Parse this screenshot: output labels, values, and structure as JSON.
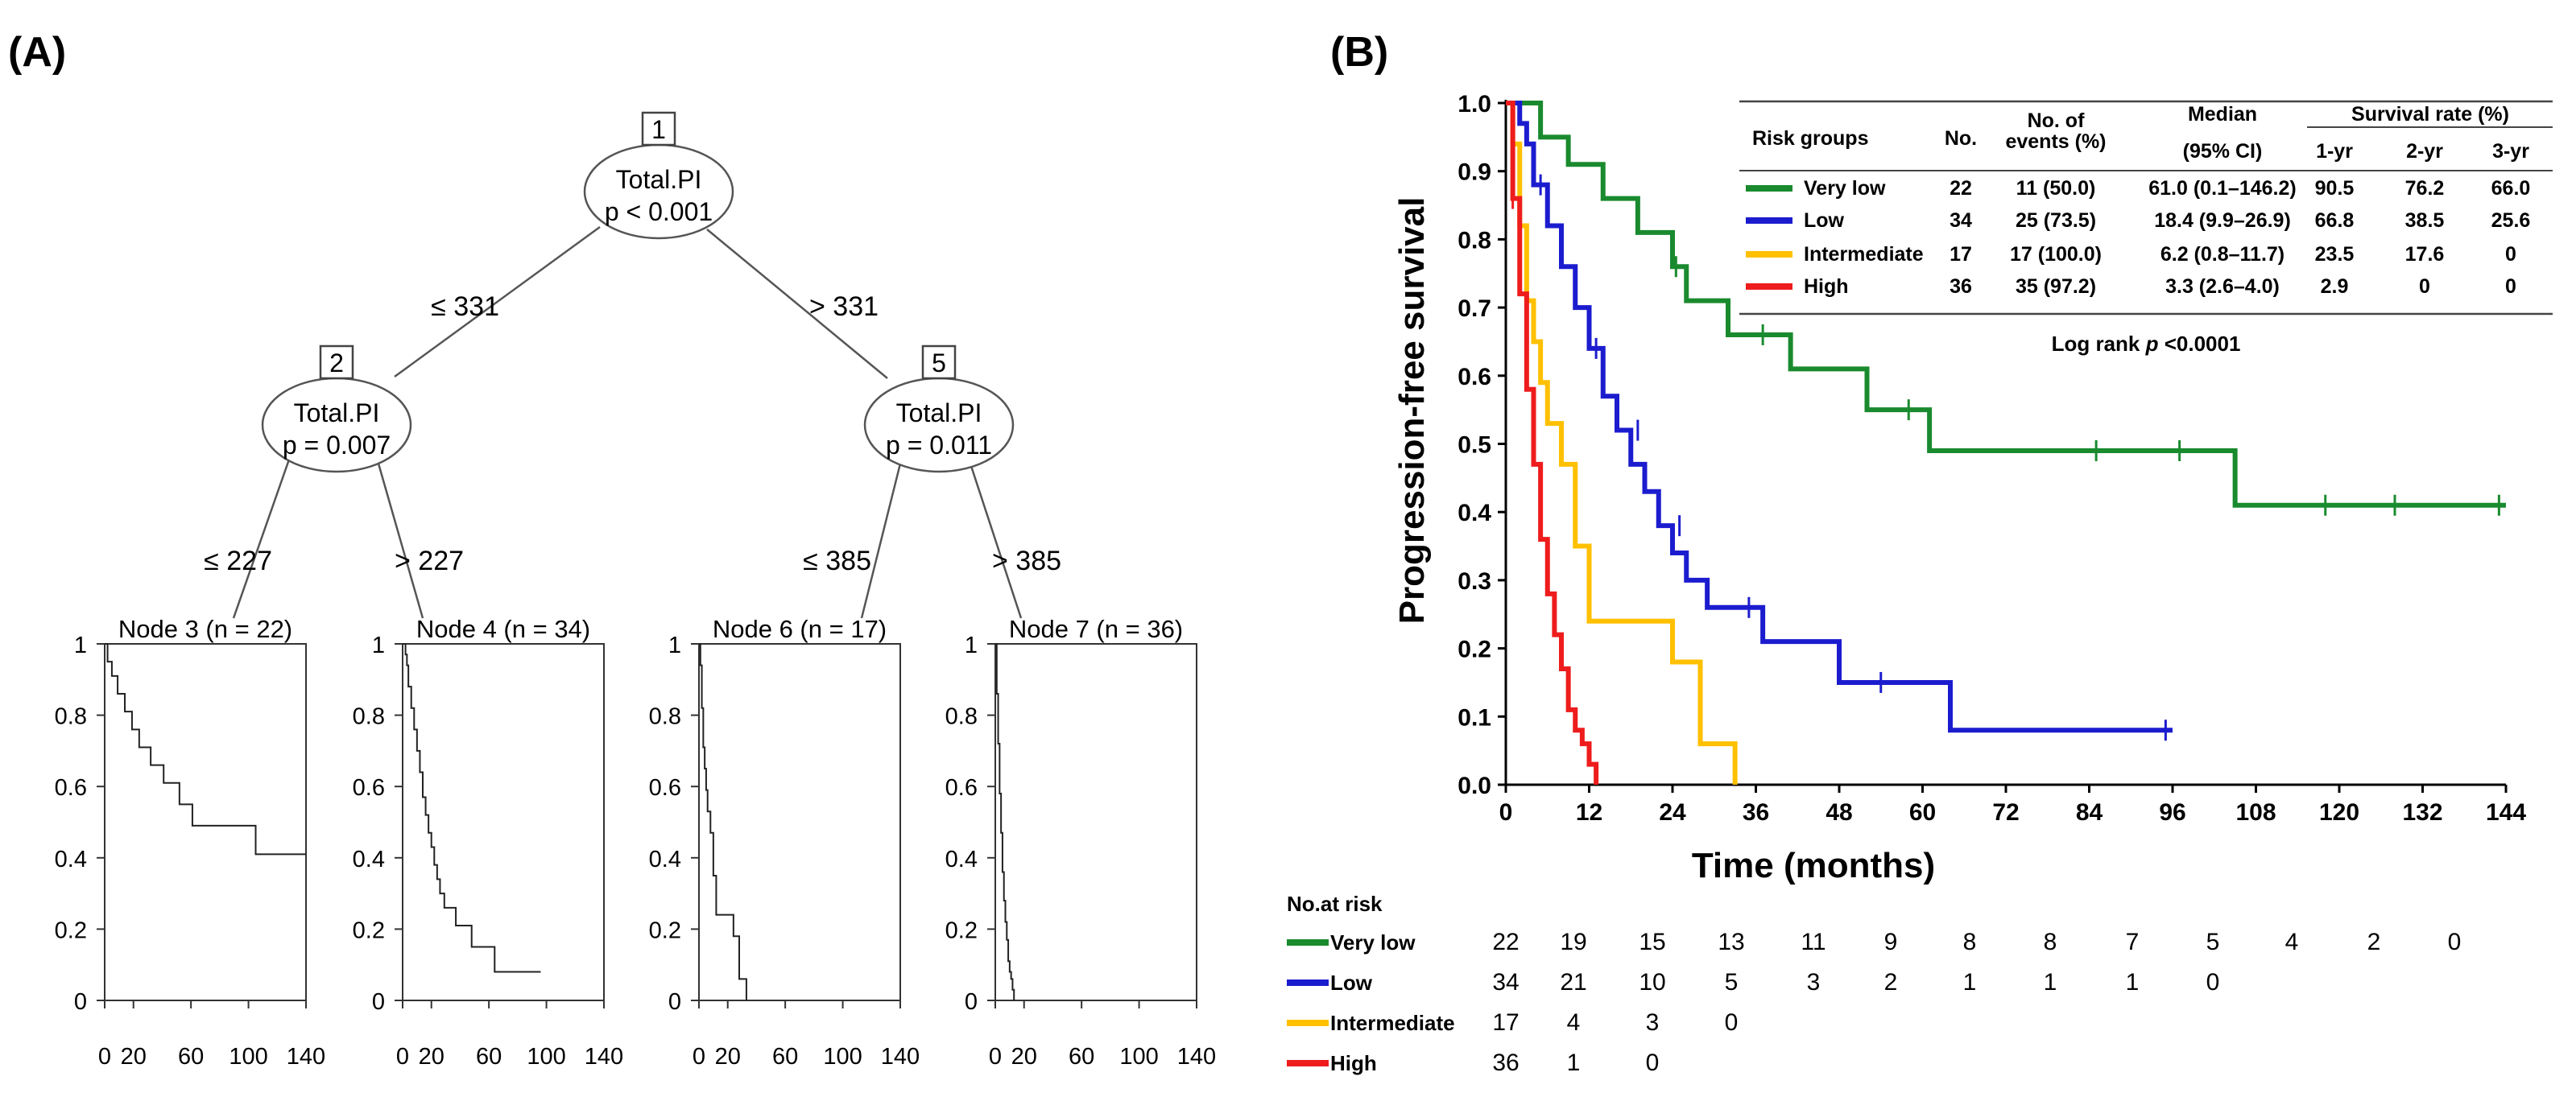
{
  "panel_a": {
    "label": "(A)",
    "nodes": [
      {
        "id": "1",
        "variable": "Total.PI",
        "p": "p < 0.001"
      },
      {
        "id": "2",
        "variable": "Total.PI",
        "p": "p = 0.007"
      },
      {
        "id": "5",
        "variable": "Total.PI",
        "p": "p = 0.011"
      }
    ],
    "edges": [
      {
        "from": "1",
        "to": "2",
        "label": "≤ 331"
      },
      {
        "from": "1",
        "to": "5",
        "label": "> 331"
      },
      {
        "from": "2",
        "to": "3",
        "label": "≤ 227"
      },
      {
        "from": "2",
        "to": "4",
        "label": "> 227"
      },
      {
        "from": "5",
        "to": "6",
        "label": "≤ 385"
      },
      {
        "from": "5",
        "to": "7",
        "label": "> 385"
      }
    ],
    "y_ticks": [
      "0",
      "0.2",
      "0.4",
      "0.6",
      "0.8",
      "1"
    ],
    "x_ticks": [
      "0",
      "20",
      "60",
      "100",
      "140"
    ]
  },
  "chart_data": [
    {
      "type": "line",
      "step": true,
      "panel": "A-node3",
      "title": "Node 3 (n = 22)",
      "xlim": [
        0,
        140
      ],
      "ylim": [
        0,
        1
      ],
      "x": [
        0,
        2,
        5,
        9,
        14,
        19,
        24,
        32,
        41,
        52,
        61,
        105,
        140
      ],
      "y": [
        1,
        0.95,
        0.91,
        0.86,
        0.81,
        0.76,
        0.71,
        0.66,
        0.61,
        0.55,
        0.49,
        0.41,
        0.41
      ]
    },
    {
      "type": "line",
      "step": true,
      "panel": "A-node4",
      "title": "Node 4 (n = 34)",
      "xlim": [
        0,
        140
      ],
      "ylim": [
        0,
        1
      ],
      "x": [
        0,
        2,
        3,
        4,
        6,
        8,
        10,
        12,
        14,
        16,
        18,
        20,
        22,
        24,
        26,
        29,
        37,
        48,
        64,
        96
      ],
      "y": [
        1,
        0.97,
        0.94,
        0.88,
        0.82,
        0.76,
        0.7,
        0.64,
        0.57,
        0.52,
        0.47,
        0.43,
        0.38,
        0.34,
        0.3,
        0.26,
        0.21,
        0.15,
        0.08,
        0.08
      ]
    },
    {
      "type": "line",
      "step": true,
      "panel": "A-node6",
      "title": "Node 6 (n = 17)",
      "xlim": [
        0,
        140
      ],
      "ylim": [
        0,
        1
      ],
      "x": [
        0,
        1,
        2,
        3,
        4,
        5,
        6,
        8,
        10,
        12,
        24,
        28,
        33
      ],
      "y": [
        1,
        0.94,
        0.82,
        0.71,
        0.65,
        0.59,
        0.53,
        0.47,
        0.35,
        0.24,
        0.18,
        0.06,
        0
      ]
    },
    {
      "type": "line",
      "step": true,
      "panel": "A-node7",
      "title": "Node 7 (n = 36)",
      "xlim": [
        0,
        140
      ],
      "ylim": [
        0,
        1
      ],
      "x": [
        0,
        1,
        2,
        3,
        4,
        5,
        6,
        7,
        8,
        9,
        10,
        11,
        12,
        13
      ],
      "y": [
        1,
        0.86,
        0.72,
        0.58,
        0.47,
        0.36,
        0.28,
        0.22,
        0.17,
        0.11,
        0.08,
        0.06,
        0.03,
        0
      ]
    },
    {
      "type": "line",
      "step": true,
      "panel": "B",
      "label": "(B)",
      "xlabel": "Time (months)",
      "ylabel": "Progression-free survival",
      "xlim": [
        0,
        144
      ],
      "ylim": [
        0,
        1
      ],
      "x_ticks": [
        "0",
        "12",
        "24",
        "36",
        "48",
        "60",
        "72",
        "84",
        "96",
        "108",
        "120",
        "132",
        "144"
      ],
      "y_ticks": [
        "0.0",
        "0.1",
        "0.2",
        "0.3",
        "0.4",
        "0.5",
        "0.6",
        "0.7",
        "0.8",
        "0.9",
        "1.0"
      ],
      "series": [
        {
          "name": "Very low",
          "color": "#1a8a2e",
          "x": [
            0,
            5,
            9,
            14,
            19,
            24,
            26,
            32,
            41,
            52,
            61,
            105,
            144
          ],
          "y": [
            1,
            0.95,
            0.91,
            0.86,
            0.81,
            0.76,
            0.71,
            0.66,
            0.61,
            0.55,
            0.49,
            0.41,
            0.41
          ],
          "censor": [
            {
              "x": 24.5,
              "y": 0.76
            },
            {
              "x": 37,
              "y": 0.66
            },
            {
              "x": 58,
              "y": 0.55
            },
            {
              "x": 85,
              "y": 0.49
            },
            {
              "x": 97,
              "y": 0.49
            },
            {
              "x": 118,
              "y": 0.41
            },
            {
              "x": 128,
              "y": 0.41
            },
            {
              "x": 143,
              "y": 0.41
            }
          ]
        },
        {
          "name": "Low",
          "color": "#1c1ccf",
          "x": [
            0,
            2,
            3,
            4,
            6,
            8,
            10,
            12,
            14,
            16,
            18,
            20,
            22,
            24,
            26,
            29,
            37,
            48,
            64,
            96
          ],
          "y": [
            1,
            0.97,
            0.94,
            0.88,
            0.82,
            0.76,
            0.7,
            0.64,
            0.57,
            0.52,
            0.47,
            0.43,
            0.38,
            0.34,
            0.3,
            0.26,
            0.21,
            0.15,
            0.08,
            0.08
          ],
          "censor": [
            {
              "x": 5,
              "y": 0.88
            },
            {
              "x": 13,
              "y": 0.64
            },
            {
              "x": 19,
              "y": 0.52
            },
            {
              "x": 25,
              "y": 0.38
            },
            {
              "x": 35,
              "y": 0.26
            },
            {
              "x": 54,
              "y": 0.15
            },
            {
              "x": 95,
              "y": 0.08
            }
          ]
        },
        {
          "name": "Intermediate",
          "color": "#ffc000",
          "x": [
            0,
            1,
            2,
            3,
            4,
            5,
            6,
            8,
            10,
            12,
            24,
            28,
            33
          ],
          "y": [
            1,
            0.94,
            0.82,
            0.71,
            0.65,
            0.59,
            0.53,
            0.47,
            0.35,
            0.24,
            0.18,
            0.06,
            0
          ],
          "censor": []
        },
        {
          "name": "High",
          "color": "#ee1c1c",
          "x": [
            0,
            1,
            2,
            3,
            4,
            5,
            6,
            7,
            8,
            9,
            10,
            11,
            12,
            13
          ],
          "y": [
            1,
            0.86,
            0.72,
            0.58,
            0.47,
            0.36,
            0.28,
            0.22,
            0.17,
            0.11,
            0.08,
            0.06,
            0.03,
            0
          ],
          "censor": [
            {
              "x": 1,
              "y": 0.86
            }
          ]
        }
      ]
    }
  ],
  "summary_table": {
    "headers": {
      "risk_groups": "Risk groups",
      "no": "No.",
      "events_1": "No. of",
      "events_2": "events (%)",
      "median_1": "Median",
      "median_2": "(95% CI)",
      "survival": "Survival rate (%)",
      "yr1": "1-yr",
      "yr2": "2-yr",
      "yr3": "3-yr"
    },
    "rows": [
      {
        "group": "Very low",
        "color": "#1a8a2e",
        "no": "22",
        "events": "11 (50.0)",
        "median": "61.0 (0.1–146.2)",
        "yr1": "90.5",
        "yr2": "76.2",
        "yr3": "66.0"
      },
      {
        "group": "Low",
        "color": "#1c1ccf",
        "no": "34",
        "events": "25 (73.5)",
        "median": "18.4 (9.9–26.9)",
        "yr1": "66.8",
        "yr2": "38.5",
        "yr3": "25.6"
      },
      {
        "group": "Intermediate",
        "color": "#ffc000",
        "no": "17",
        "events": "17 (100.0)",
        "median": "6.2 (0.8–11.7)",
        "yr1": "23.5",
        "yr2": "17.6",
        "yr3": "0"
      },
      {
        "group": "High",
        "color": "#ee1c1c",
        "no": "36",
        "events": "35 (97.2)",
        "median": "3.3 (2.6–4.0)",
        "yr1": "2.9",
        "yr2": "0",
        "yr3": "0"
      }
    ],
    "logrank_prefix": "Log rank ",
    "logrank_p": "p",
    "logrank_suffix": " <0.0001"
  },
  "risk_table": {
    "title": "No.at risk",
    "rows": [
      {
        "group": "Very low",
        "color": "#1a8a2e",
        "values": [
          "22",
          "19",
          "15",
          "13",
          "11",
          "9",
          "8",
          "8",
          "7",
          "5",
          "4",
          "2",
          "0"
        ]
      },
      {
        "group": "Low",
        "color": "#1c1ccf",
        "values": [
          "34",
          "21",
          "10",
          "5",
          "3",
          "2",
          "1",
          "1",
          "1",
          "0"
        ]
      },
      {
        "group": "Intermediate",
        "color": "#ffc000",
        "values": [
          "17",
          "4",
          "3",
          "0"
        ]
      },
      {
        "group": "High",
        "color": "#ee1c1c",
        "values": [
          "36",
          "1",
          "0"
        ]
      }
    ]
  }
}
